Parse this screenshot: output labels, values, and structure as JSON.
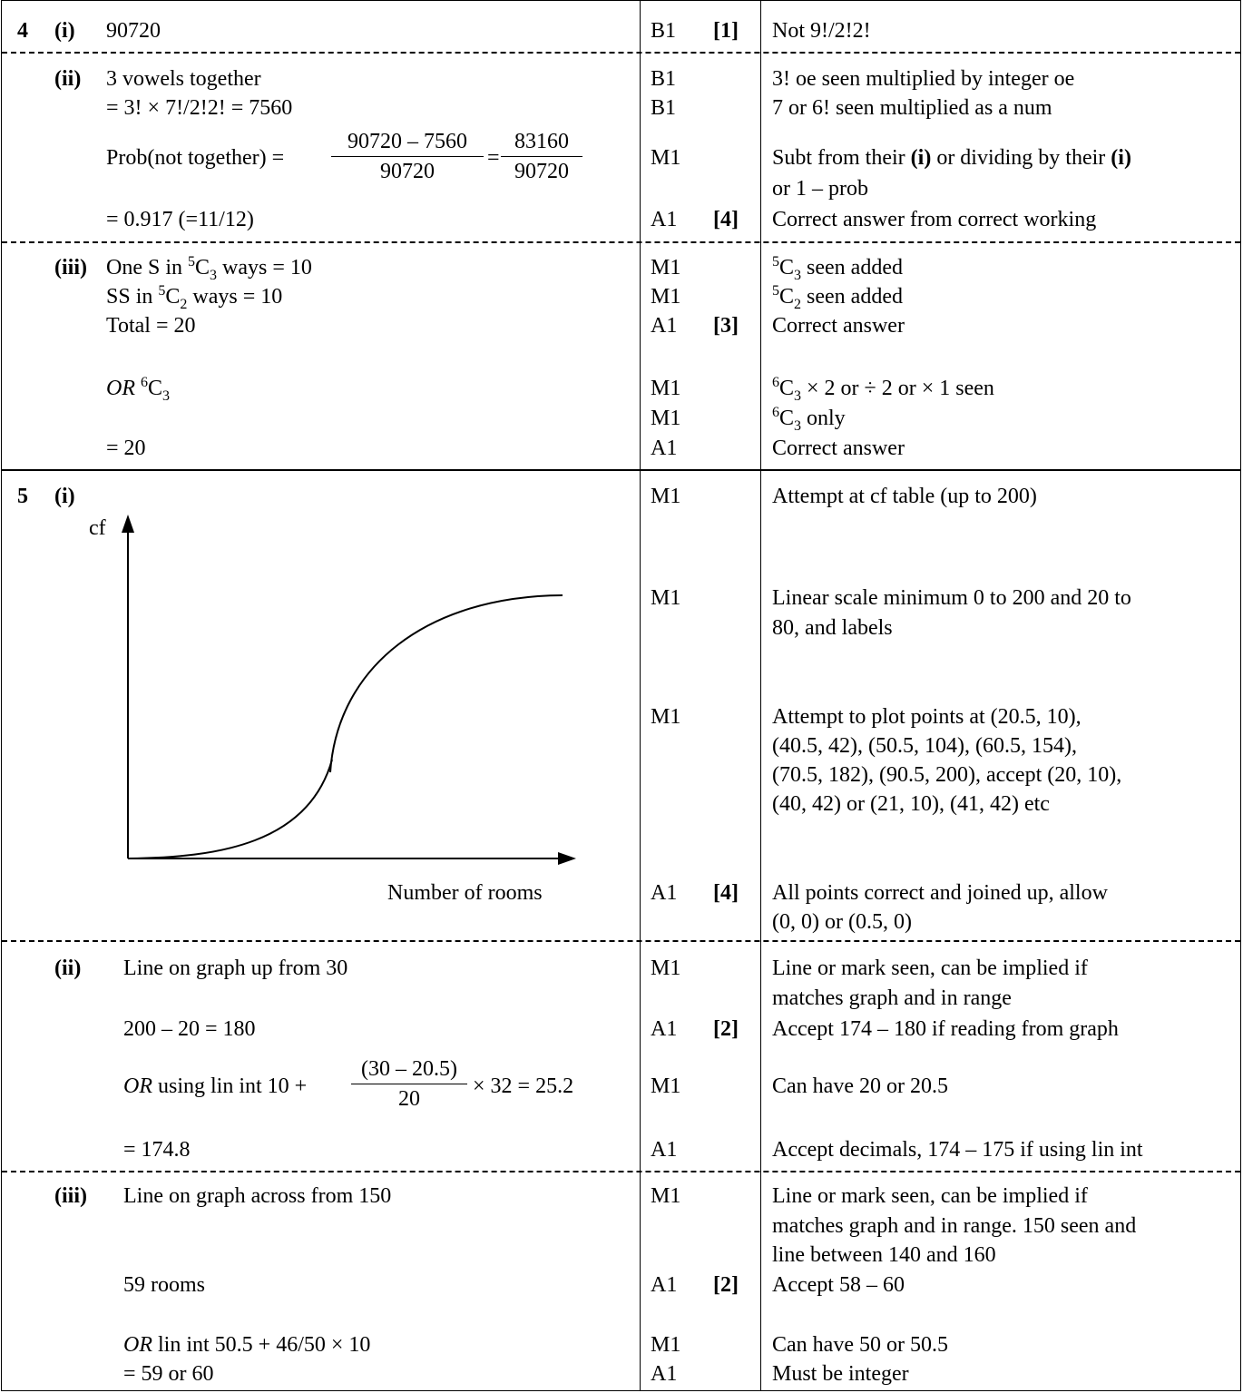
{
  "q4": {
    "num": "4",
    "i": {
      "label": "(i)",
      "answer": "90720",
      "mark": "B1",
      "total": "[1]",
      "comment": "Not 9!/2!2!"
    },
    "ii": {
      "label": "(ii)",
      "line1": "3 vowels together",
      "line2": "= 3! × 7!/2!2! = 7560",
      "prob_prefix": "Prob(not together) =",
      "frac1_num": "90720 – 7560",
      "frac1_den": "90720",
      "eq": "=",
      "frac2_num": "83160",
      "frac2_den": "90720",
      "line4": "= 0.917 (=11/12)",
      "marks": [
        "B1",
        "B1",
        "M1",
        "A1"
      ],
      "total": "[4]",
      "c1": "3! oe seen multiplied by integer oe",
      "c2": "7 or 6! seen multiplied as a num",
      "c3a_pre": "Subt from their ",
      "c3a_b1": "(i)",
      "c3a_mid": " or dividing by their ",
      "c3a_b2": "(i)",
      "c3b": "or 1 – prob",
      "c4": "Correct answer from correct working"
    },
    "iii": {
      "label": "(iii)",
      "l1_pre": "One S in ",
      "l1_post": " ways = 10",
      "l2_pre": "SS in ",
      "l2_post": " ways = 10",
      "l3": "Total = 20",
      "or": "OR",
      "l4_post": "",
      "l5": "= 20",
      "marks": [
        "M1",
        "M1",
        "A1",
        "M1",
        "M1",
        "A1"
      ],
      "total": "[3]",
      "c1_post": " seen added",
      "c2_post": " seen added",
      "c3": "Correct answer",
      "c4_post": " × 2 or ÷ 2 or × 1 seen",
      "c5_post": " only",
      "c6": "Correct answer"
    }
  },
  "q5": {
    "num": "5",
    "i": {
      "label": "(i)",
      "y_label": "cf",
      "x_label": "Number of rooms",
      "marks": [
        "M1",
        "M1",
        "M1",
        "A1"
      ],
      "total": "[4]",
      "c1": "Attempt at cf table (up to 200)",
      "c2a": "Linear scale minimum 0 to 200 and 20 to",
      "c2b": "80, and labels",
      "c3a": "Attempt to plot points at (20.5, 10),",
      "c3b": "(40.5, 42), (50.5, 104), (60.5, 154),",
      "c3c": "(70.5, 182), (90.5, 200), accept (20, 10),",
      "c3d": "(40, 42) or (21, 10), (41, 42) etc",
      "c4a": "All points correct and joined up, allow",
      "c4b": "(0, 0) or (0.5, 0)"
    },
    "ii": {
      "label": "(ii)",
      "l1": "Line on graph up from 30",
      "l2": "200 – 20 = 180",
      "or": "OR",
      "l3_pre": " using lin int  10 +",
      "frac_num": "(30 – 20.5)",
      "frac_den": "20",
      "l3_post": "× 32 = 25.2",
      "l4": "= 174.8",
      "marks": [
        "M1",
        "A1",
        "M1",
        "A1"
      ],
      "total": "[2]",
      "c1a": "Line or mark seen, can be implied if",
      "c1b": "matches graph and in range",
      "c2": "Accept 174 – 180 if reading from graph",
      "c3": "Can have 20 or 20.5",
      "c4": "Accept decimals, 174 – 175 if using lin int"
    },
    "iii": {
      "label": "(iii)",
      "l1": "Line on graph across from 150",
      "l2": "59 rooms",
      "or": "OR",
      "l3": " lin int  50.5 + 46/50 × 10",
      "l4": "= 59 or 60",
      "marks": [
        "M1",
        "A1",
        "M1",
        "A1"
      ],
      "total": "[2]",
      "c1a": "Line or mark seen, can be implied if",
      "c1b": "matches graph and in range. 150 seen and",
      "c1c": "line between 140 and 160",
      "c2": "Accept 58 – 60",
      "c3": "Can have 50 or 50.5",
      "c4": "Must be integer"
    }
  },
  "combinatorics": {
    "c5": "C",
    "c6": "C",
    "sup5": "5",
    "sup6": "6",
    "sub3": "3",
    "sub2": "2"
  }
}
